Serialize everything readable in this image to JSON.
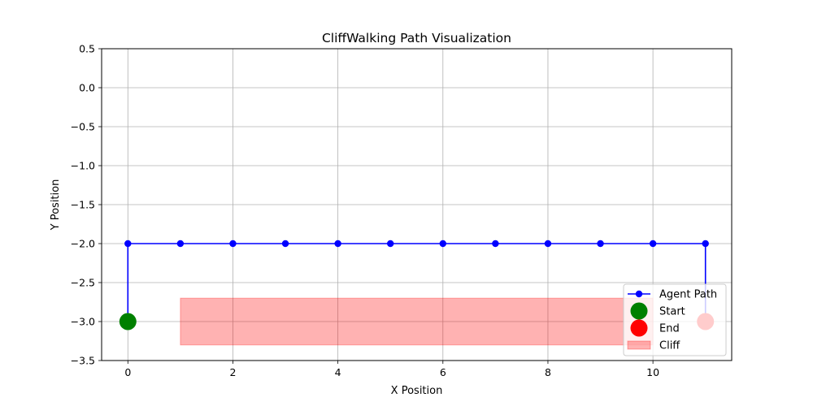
{
  "chart_data": {
    "type": "line",
    "title": "CliffWalking Path Visualization",
    "xlabel": "X Position",
    "ylabel": "Y Position",
    "xlim": [
      -0.5,
      11.5
    ],
    "ylim": [
      -3.5,
      0.5
    ],
    "x_ticks": [
      0,
      2,
      4,
      6,
      8,
      10
    ],
    "x_tick_labels": [
      "0",
      "2",
      "4",
      "6",
      "8",
      "10"
    ],
    "y_ticks": [
      0.5,
      0.0,
      -0.5,
      -1.0,
      -1.5,
      -2.0,
      -2.5,
      -3.0,
      -3.5
    ],
    "y_tick_labels": [
      "0.5",
      "0.0",
      "−0.5",
      "−1.0",
      "−1.5",
      "−2.0",
      "−2.5",
      "−3.0",
      "−3.5"
    ],
    "grid": true,
    "legend_position": "lower-right",
    "series": [
      {
        "name": "Agent Path",
        "color": "#0000ff",
        "marker": "circle",
        "points": [
          [
            0,
            -3
          ],
          [
            0,
            -2
          ],
          [
            1,
            -2
          ],
          [
            2,
            -2
          ],
          [
            3,
            -2
          ],
          [
            4,
            -2
          ],
          [
            5,
            -2
          ],
          [
            6,
            -2
          ],
          [
            7,
            -2
          ],
          [
            8,
            -2
          ],
          [
            9,
            -2
          ],
          [
            10,
            -2
          ],
          [
            11,
            -2
          ],
          [
            11,
            -3
          ]
        ],
        "marker_points": [
          [
            0,
            -2
          ],
          [
            1,
            -2
          ],
          [
            2,
            -2
          ],
          [
            3,
            -2
          ],
          [
            4,
            -2
          ],
          [
            5,
            -2
          ],
          [
            6,
            -2
          ],
          [
            7,
            -2
          ],
          [
            8,
            -2
          ],
          [
            9,
            -2
          ],
          [
            10,
            -2
          ],
          [
            11,
            -2
          ]
        ]
      }
    ],
    "special_points": [
      {
        "name": "Start",
        "x": 0,
        "y": -3,
        "color": "#008000"
      },
      {
        "name": "End",
        "x": 11,
        "y": -3,
        "color": "#ff0000"
      }
    ],
    "regions": [
      {
        "name": "Cliff",
        "x_from": 1,
        "x_to": 10,
        "y_from": -3.3,
        "y_to": -2.7,
        "color": "#ff0000",
        "alpha": 0.3
      }
    ],
    "legend": [
      {
        "label": "Agent Path",
        "kind": "line-marker",
        "color": "#0000ff"
      },
      {
        "label": "Start",
        "kind": "marker",
        "color": "#008000"
      },
      {
        "label": "End",
        "kind": "marker",
        "color": "#ff0000"
      },
      {
        "label": "Cliff",
        "kind": "patch",
        "color": "#ff0000",
        "alpha": 0.3
      }
    ]
  }
}
